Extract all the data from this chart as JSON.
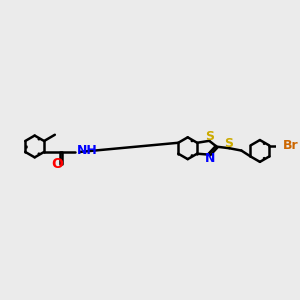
{
  "bg_color": "#ebebeb",
  "bond_color": "#000000",
  "bond_width": 1.8,
  "atom_colors": {
    "N": "#0000ff",
    "O": "#ff0000",
    "S": "#ccaa00",
    "Br": "#cc6600",
    "C": "#000000",
    "H": "#4a8a4a"
  },
  "font_size": 9,
  "label_fontsize": 9
}
